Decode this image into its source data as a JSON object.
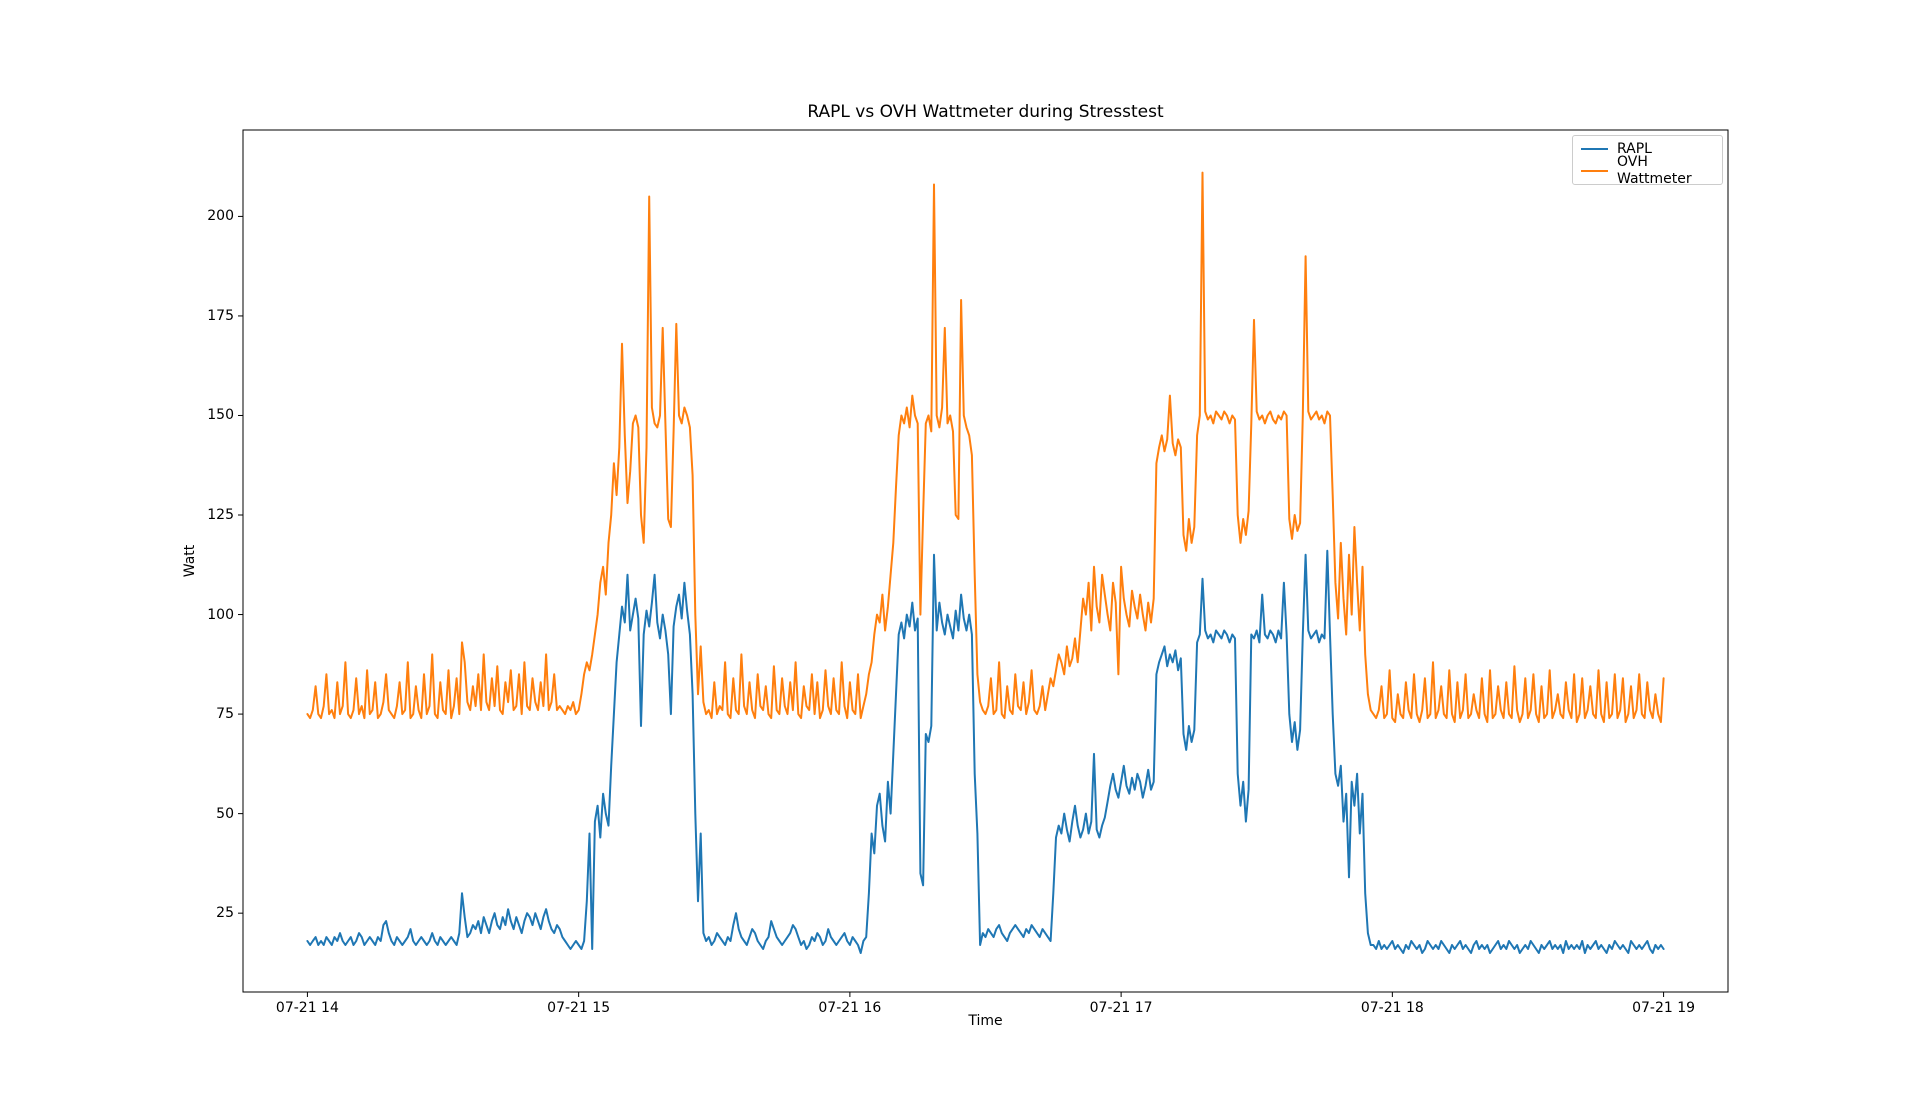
{
  "chart_data": {
    "type": "line",
    "title": "RAPL vs OVH Wattmeter during Stresstest",
    "xlabel": "Time",
    "ylabel": "Watt",
    "grid": false,
    "legend_position": "upper right",
    "x_unit": "hour of 07-21",
    "x_start_hour": 14.0,
    "x_step_hour": 0.01,
    "xlim": [
      13.7625,
      19.2375
    ],
    "ylim": [
      5.2,
      221.7
    ],
    "x_ticks": [
      {
        "hour": 14,
        "label": "07-21 14"
      },
      {
        "hour": 15,
        "label": "07-21 15"
      },
      {
        "hour": 16,
        "label": "07-21 16"
      },
      {
        "hour": 17,
        "label": "07-21 17"
      },
      {
        "hour": 18,
        "label": "07-21 18"
      },
      {
        "hour": 19,
        "label": "07-21 19"
      }
    ],
    "y_ticks": [
      25,
      50,
      75,
      100,
      125,
      150,
      175,
      200
    ],
    "series": [
      {
        "name": "RAPL",
        "color": "#1f77b4",
        "values": [
          18,
          17,
          18,
          19,
          17,
          18,
          17,
          19,
          18,
          17,
          19,
          18,
          20,
          18,
          17,
          18,
          19,
          17,
          18,
          20,
          19,
          17,
          18,
          19,
          18,
          17,
          19,
          18,
          22,
          23,
          20,
          18,
          17,
          19,
          18,
          17,
          18,
          19,
          21,
          18,
          17,
          18,
          19,
          18,
          17,
          18,
          20,
          18,
          17,
          19,
          18,
          17,
          18,
          19,
          18,
          17,
          20,
          30,
          24,
          19,
          20,
          22,
          21,
          23,
          20,
          24,
          22,
          20,
          23,
          25,
          22,
          21,
          24,
          22,
          26,
          23,
          21,
          24,
          22,
          20,
          23,
          25,
          24,
          22,
          25,
          23,
          21,
          24,
          26,
          23,
          21,
          20,
          22,
          21,
          19,
          18,
          17,
          16,
          17,
          18,
          17,
          16,
          18,
          28,
          45,
          16,
          48,
          52,
          44,
          55,
          50,
          47,
          62,
          75,
          88,
          95,
          102,
          98,
          110,
          96,
          100,
          104,
          99,
          72,
          95,
          101,
          97,
          103,
          110,
          98,
          94,
          100,
          96,
          90,
          75,
          97,
          102,
          105,
          99,
          108,
          101,
          95,
          80,
          50,
          28,
          45,
          20,
          18,
          19,
          17,
          18,
          20,
          19,
          18,
          17,
          19,
          18,
          22,
          25,
          21,
          19,
          18,
          17,
          19,
          21,
          20,
          18,
          17,
          16,
          18,
          19,
          23,
          21,
          19,
          18,
          17,
          18,
          19,
          20,
          22,
          21,
          19,
          17,
          18,
          16,
          17,
          19,
          18,
          20,
          19,
          17,
          18,
          21,
          19,
          18,
          17,
          18,
          19,
          20,
          18,
          17,
          19,
          18,
          17,
          15,
          18,
          19,
          30,
          45,
          40,
          52,
          55,
          47,
          43,
          58,
          50,
          65,
          80,
          95,
          98,
          94,
          100,
          97,
          103,
          96,
          99,
          35,
          32,
          70,
          68,
          72,
          115,
          96,
          103,
          98,
          95,
          100,
          97,
          94,
          101,
          96,
          105,
          99,
          96,
          100,
          95,
          60,
          45,
          17,
          20,
          19,
          21,
          20,
          19,
          21,
          22,
          20,
          19,
          18,
          20,
          21,
          22,
          21,
          20,
          19,
          21,
          20,
          22,
          21,
          20,
          19,
          21,
          20,
          19,
          18,
          30,
          44,
          47,
          45,
          50,
          46,
          43,
          48,
          52,
          47,
          44,
          46,
          50,
          45,
          48,
          65,
          46,
          44,
          47,
          49,
          53,
          57,
          60,
          56,
          54,
          58,
          62,
          57,
          55,
          59,
          56,
          60,
          58,
          54,
          57,
          61,
          56,
          58,
          85,
          88,
          90,
          92,
          87,
          90,
          88,
          91,
          86,
          89,
          70,
          66,
          72,
          68,
          71,
          93,
          95,
          109,
          96,
          94,
          95,
          93,
          96,
          95,
          94,
          96,
          95,
          93,
          95,
          94,
          60,
          52,
          58,
          48,
          56,
          95,
          94,
          96,
          93,
          105,
          95,
          94,
          96,
          95,
          93,
          96,
          94,
          108,
          95,
          75,
          68,
          73,
          66,
          71,
          95,
          115,
          96,
          94,
          95,
          96,
          93,
          95,
          94,
          116,
          95,
          75,
          60,
          57,
          62,
          48,
          55,
          34,
          58,
          52,
          60,
          45,
          55,
          30,
          20,
          17,
          17,
          16,
          18,
          16,
          17,
          16,
          17,
          18,
          16,
          17,
          16,
          15,
          17,
          16,
          18,
          17,
          16,
          17,
          15,
          16,
          18,
          17,
          16,
          17,
          16,
          18,
          17,
          16,
          15,
          17,
          16,
          17,
          18,
          16,
          17,
          16,
          15,
          17,
          18,
          16,
          17,
          16,
          17,
          15,
          16,
          17,
          18,
          16,
          17,
          16,
          18,
          17,
          16,
          17,
          15,
          16,
          17,
          16,
          18,
          17,
          16,
          15,
          17,
          16,
          17,
          18,
          16,
          17,
          16,
          17,
          15,
          18,
          16,
          17,
          16,
          17,
          16,
          18,
          15,
          17,
          16,
          17,
          18,
          16,
          17,
          16,
          15,
          17,
          16,
          18,
          17,
          16,
          17,
          16,
          15,
          18,
          17,
          16,
          17,
          16,
          17,
          18,
          16,
          15,
          17,
          16,
          17,
          16
        ]
      },
      {
        "name": "OVH Wattmeter",
        "color": "#ff7f0e",
        "values": [
          75,
          74,
          76,
          82,
          75,
          74,
          77,
          85,
          75,
          76,
          74,
          83,
          75,
          77,
          88,
          75,
          74,
          76,
          84,
          75,
          77,
          74,
          86,
          75,
          76,
          83,
          74,
          75,
          78,
          85,
          76,
          75,
          74,
          77,
          83,
          75,
          76,
          88,
          74,
          75,
          82,
          76,
          74,
          85,
          75,
          77,
          90,
          75,
          74,
          83,
          76,
          75,
          86,
          74,
          77,
          84,
          75,
          93,
          88,
          78,
          76,
          82,
          77,
          85,
          76,
          90,
          78,
          76,
          84,
          77,
          87,
          76,
          75,
          83,
          78,
          86,
          76,
          77,
          85,
          75,
          88,
          77,
          76,
          84,
          78,
          76,
          83,
          77,
          90,
          76,
          78,
          85,
          76,
          77,
          76,
          75,
          77,
          76,
          78,
          75,
          76,
          80,
          85,
          88,
          86,
          90,
          95,
          100,
          108,
          112,
          105,
          118,
          125,
          138,
          130,
          142,
          168,
          145,
          128,
          136,
          148,
          150,
          147,
          125,
          118,
          142,
          205,
          152,
          148,
          147,
          150,
          172,
          148,
          124,
          122,
          146,
          173,
          150,
          148,
          152,
          150,
          147,
          135,
          100,
          80,
          92,
          78,
          75,
          76,
          74,
          83,
          75,
          77,
          76,
          88,
          75,
          74,
          84,
          76,
          75,
          90,
          77,
          75,
          83,
          76,
          74,
          85,
          77,
          76,
          82,
          75,
          74,
          87,
          76,
          75,
          84,
          77,
          75,
          83,
          76,
          88,
          75,
          74,
          82,
          77,
          76,
          85,
          75,
          83,
          74,
          76,
          86,
          77,
          75,
          84,
          76,
          75,
          88,
          77,
          74,
          83,
          76,
          75,
          85,
          74,
          77,
          80,
          85,
          88,
          95,
          100,
          98,
          105,
          96,
          102,
          110,
          118,
          132,
          145,
          150,
          148,
          152,
          147,
          155,
          150,
          148,
          100,
          125,
          148,
          150,
          146,
          208,
          150,
          147,
          152,
          172,
          148,
          150,
          146,
          125,
          124,
          179,
          150,
          147,
          145,
          140,
          110,
          85,
          78,
          76,
          75,
          77,
          84,
          75,
          76,
          88,
          75,
          74,
          82,
          76,
          75,
          85,
          77,
          76,
          83,
          75,
          78,
          86,
          76,
          75,
          77,
          82,
          76,
          80,
          84,
          82,
          86,
          90,
          88,
          85,
          92,
          87,
          89,
          94,
          88,
          96,
          104,
          100,
          108,
          96,
          112,
          102,
          98,
          110,
          105,
          100,
          96,
          108,
          103,
          85,
          112,
          104,
          100,
          97,
          106,
          102,
          99,
          105,
          100,
          96,
          103,
          98,
          104,
          138,
          142,
          145,
          141,
          144,
          155,
          143,
          140,
          144,
          142,
          120,
          116,
          124,
          118,
          122,
          145,
          150,
          211,
          151,
          149,
          150,
          148,
          151,
          150,
          149,
          151,
          150,
          148,
          150,
          149,
          125,
          118,
          124,
          120,
          126,
          148,
          174,
          151,
          149,
          150,
          148,
          150,
          151,
          149,
          148,
          150,
          149,
          151,
          150,
          124,
          119,
          125,
          121,
          123,
          150,
          190,
          151,
          149,
          150,
          151,
          149,
          150,
          148,
          151,
          150,
          130,
          108,
          99,
          118,
          104,
          95,
          115,
          100,
          122,
          108,
          96,
          112,
          90,
          80,
          76,
          75,
          74,
          76,
          82,
          74,
          75,
          86,
          74,
          73,
          80,
          75,
          74,
          83,
          76,
          74,
          85,
          75,
          73,
          76,
          84,
          74,
          75,
          88,
          74,
          76,
          82,
          75,
          74,
          86,
          75,
          73,
          83,
          74,
          76,
          85,
          74,
          75,
          80,
          76,
          74,
          84,
          75,
          73,
          86,
          74,
          75,
          82,
          76,
          74,
          83,
          75,
          74,
          87,
          76,
          73,
          75,
          84,
          74,
          76,
          85,
          75,
          73,
          82,
          74,
          75,
          86,
          74,
          76,
          80,
          75,
          74,
          83,
          76,
          74,
          85,
          73,
          75,
          84,
          74,
          76,
          82,
          75,
          74,
          86,
          75,
          73,
          83,
          74,
          75,
          85,
          74,
          76,
          84,
          73,
          75,
          82,
          74,
          76,
          85,
          75,
          74,
          83,
          76,
          74,
          80,
          75,
          73,
          84
        ]
      }
    ]
  }
}
